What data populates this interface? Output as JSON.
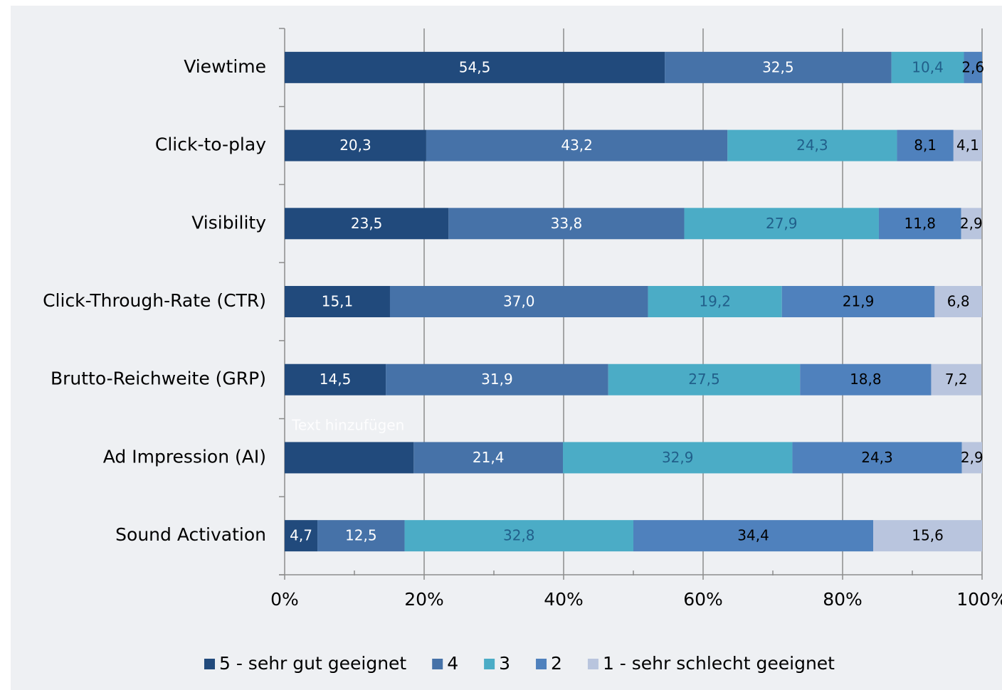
{
  "chart_data": {
    "type": "stacked_barh",
    "categories": [
      "Viewtime",
      "Click-to-play",
      "Visibility",
      "Click-Through-Rate (CTR)",
      "Brutto-Reichweite (GRP)",
      "Ad Impression (AI)",
      "Sound Activation"
    ],
    "series": [
      {
        "name": "5 - sehr gut geeignet",
        "color": "#214a7c",
        "label_color": "#ffffff",
        "values": [
          54.5,
          20.3,
          23.5,
          15.1,
          14.5,
          18.5,
          4.7
        ],
        "value_labels": [
          "54,5",
          "20,3",
          "23,5",
          "15,1",
          "14,5",
          null,
          "4,7"
        ]
      },
      {
        "name": "4",
        "color": "#4672a8",
        "label_color": "#ffffff",
        "values": [
          32.5,
          43.2,
          33.8,
          37.0,
          31.9,
          21.4,
          12.5
        ],
        "value_labels": [
          "32,5",
          "43,2",
          "33,8",
          "37,0",
          "31,9",
          "21,4",
          "12,5"
        ]
      },
      {
        "name": "3",
        "color": "#4bacc6",
        "label_color": "#215f8a",
        "values": [
          10.4,
          24.3,
          27.9,
          19.2,
          27.5,
          32.9,
          32.8
        ],
        "value_labels": [
          "10,4",
          "24,3",
          "27,9",
          "19,2",
          "27,5",
          "32,9",
          "32,8"
        ]
      },
      {
        "name": "2",
        "color": "#4f81bd",
        "label_color": "#000000",
        "values": [
          2.6,
          8.1,
          11.8,
          21.9,
          18.8,
          24.3,
          34.4
        ],
        "value_labels": [
          "2,6",
          "8,1",
          "11,8",
          "21,9",
          "18,8",
          "24,3",
          "34,4"
        ]
      },
      {
        "name": "1 - sehr schlecht geeignet",
        "color": "#b9c5de",
        "label_color": "#000000",
        "values": [
          null,
          4.1,
          2.9,
          6.8,
          7.2,
          2.9,
          15.6
        ],
        "value_labels": [
          null,
          "4,1",
          "2,9",
          "6,8",
          "7,2",
          "2,9",
          "15,6"
        ]
      }
    ],
    "xlim": [
      0,
      100
    ],
    "xticks": [
      {
        "value": 0,
        "label": "0%"
      },
      {
        "value": 20,
        "label": "20%"
      },
      {
        "value": 40,
        "label": "40%"
      },
      {
        "value": 60,
        "label": "60%"
      },
      {
        "value": 80,
        "label": "80%"
      },
      {
        "value": 100,
        "label": "100%"
      }
    ],
    "xminorticks": [
      10,
      30,
      50,
      70,
      90
    ],
    "grid": true,
    "legend": "bottom",
    "annotation": "Text hinzufügen"
  }
}
